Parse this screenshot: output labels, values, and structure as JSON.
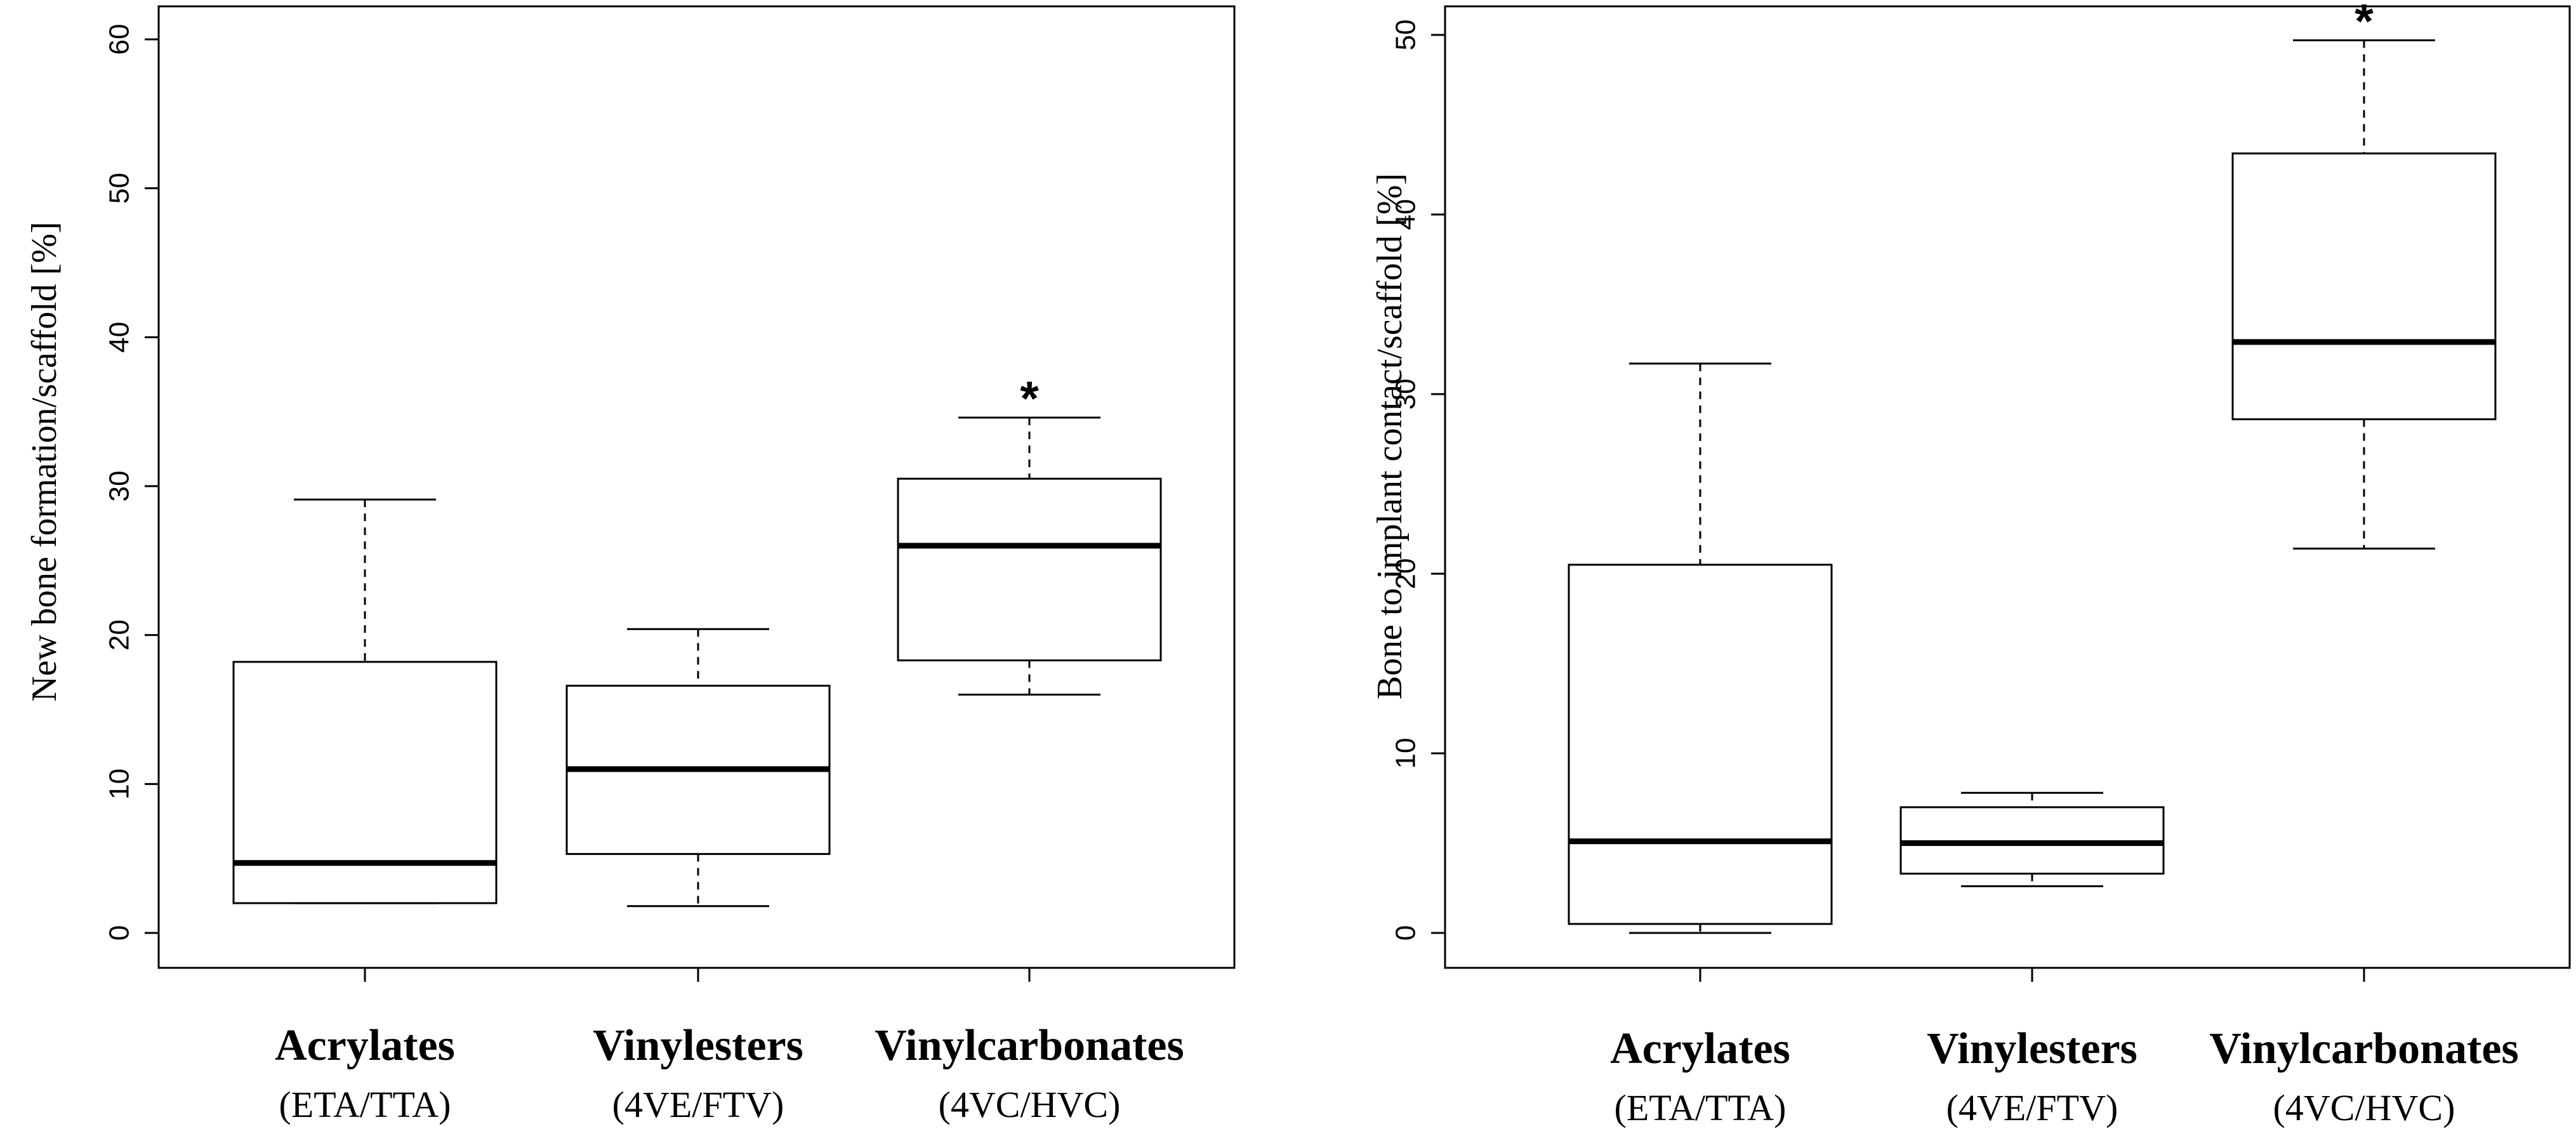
{
  "chart_data": [
    {
      "type": "box",
      "ylabel": "New bone formation/scaffold [%]",
      "ylim": [
        0,
        60
      ],
      "yticks": [
        0,
        10,
        20,
        30,
        40,
        50,
        60
      ],
      "categories": [
        {
          "name": "Acrylates",
          "sub": "(ETA/TTA)"
        },
        {
          "name": "Vinylesters",
          "sub": "(4VE/FTV)"
        },
        {
          "name": "Vinylcarbonates",
          "sub": "(4VC/HVC)"
        }
      ],
      "boxes": [
        {
          "whisker_low": 2,
          "q1": 2,
          "median": 4.7,
          "q3": 18.2,
          "whisker_high": 29.1,
          "marker": ""
        },
        {
          "whisker_low": 1.8,
          "q1": 5.3,
          "median": 11.0,
          "q3": 16.6,
          "whisker_high": 20.4,
          "marker": ""
        },
        {
          "whisker_low": 16.0,
          "q1": 18.3,
          "median": 26.0,
          "q3": 30.5,
          "whisker_high": 34.6,
          "marker": "*"
        }
      ]
    },
    {
      "type": "box",
      "ylabel": "Bone to implant contact/scaffold [%]",
      "ylim": [
        0,
        50
      ],
      "yticks": [
        0,
        10,
        20,
        30,
        40,
        50
      ],
      "categories": [
        {
          "name": "Acrylates",
          "sub": "(ETA/TTA)"
        },
        {
          "name": "Vinylesters",
          "sub": "(4VE/FTV)"
        },
        {
          "name": "Vinylcarbonates",
          "sub": "(4VC/HVC)"
        }
      ],
      "boxes": [
        {
          "whisker_low": 0.0,
          "q1": 0.5,
          "median": 5.1,
          "q3": 20.5,
          "whisker_high": 31.7,
          "marker": ""
        },
        {
          "whisker_low": 2.6,
          "q1": 3.3,
          "median": 5.0,
          "q3": 7.0,
          "whisker_high": 7.8,
          "marker": ""
        },
        {
          "whisker_low": 21.4,
          "q1": 28.6,
          "median": 32.9,
          "q3": 43.4,
          "whisker_high": 49.7,
          "marker": "*"
        }
      ]
    }
  ]
}
